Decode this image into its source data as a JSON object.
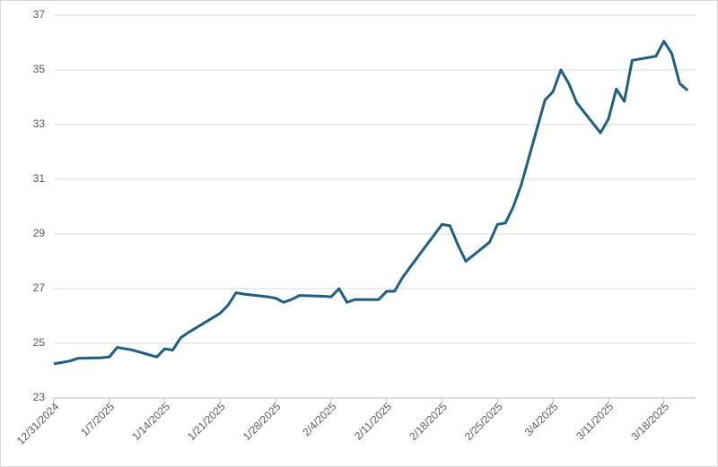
{
  "chart_data": {
    "type": "line",
    "x": [
      "12/31/2024",
      "1/2/2025",
      "1/3/2025",
      "1/6/2025",
      "1/7/2025",
      "1/8/2025",
      "1/10/2025",
      "1/13/2025",
      "1/14/2025",
      "1/15/2025",
      "1/16/2025",
      "1/17/2025",
      "1/21/2025",
      "1/22/2025",
      "1/23/2025",
      "1/24/2025",
      "1/27/2025",
      "1/28/2025",
      "1/29/2025",
      "1/30/2025",
      "1/31/2025",
      "2/3/2025",
      "2/4/2025",
      "2/5/2025",
      "2/6/2025",
      "2/7/2025",
      "2/10/2025",
      "2/11/2025",
      "2/12/2025",
      "2/13/2025",
      "2/14/2025",
      "2/18/2025",
      "2/19/2025",
      "2/20/2025",
      "2/21/2025",
      "2/24/2025",
      "2/25/2025",
      "2/26/2025",
      "2/27/2025",
      "2/28/2025",
      "3/3/2025",
      "3/4/2025",
      "3/5/2025",
      "3/6/2025",
      "3/7/2025",
      "3/10/2025",
      "3/11/2025",
      "3/12/2025",
      "3/13/2025",
      "3/14/2025",
      "3/17/2025",
      "3/18/2025",
      "3/19/2025",
      "3/20/2025",
      "3/21/2025"
    ],
    "series": [
      {
        "color": "#1f5f7f",
        "values": [
          24.25,
          24.35,
          24.45,
          24.47,
          24.5,
          24.85,
          24.75,
          24.5,
          24.8,
          24.75,
          25.2,
          25.4,
          26.1,
          26.4,
          26.85,
          26.8,
          26.7,
          26.65,
          26.5,
          26.6,
          26.75,
          26.72,
          26.7,
          27.0,
          26.5,
          26.6,
          26.6,
          26.9,
          26.9,
          27.4,
          27.8,
          29.35,
          29.3,
          28.6,
          28.0,
          28.7,
          29.35,
          29.4,
          30.0,
          30.8,
          33.9,
          34.2,
          35.0,
          34.5,
          33.8,
          32.7,
          33.2,
          34.3,
          33.85,
          35.35,
          35.5,
          36.05,
          35.6,
          34.5,
          34.25
        ]
      }
    ],
    "xlim": [
      "12/31/2024",
      "3/22/2025"
    ],
    "xticks": [
      "12/31/2024",
      "1/7/2025",
      "1/14/2025",
      "1/21/2025",
      "1/28/2025",
      "2/4/2025",
      "2/11/2025",
      "2/18/2025",
      "2/25/2025",
      "3/4/2025",
      "3/11/2025",
      "3/18/2025"
    ],
    "ylim": [
      23,
      37
    ],
    "yticks": [
      23,
      25,
      27,
      29,
      31,
      33,
      35,
      37
    ],
    "grid": true
  }
}
